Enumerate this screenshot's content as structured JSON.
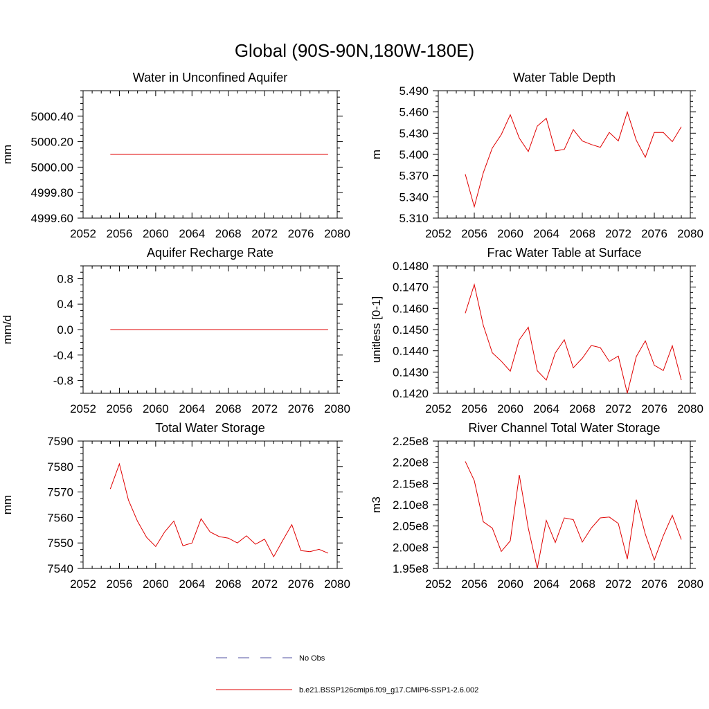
{
  "figure_title": "Global (90S-90N,180W-180E)",
  "chart_data": [
    {
      "type": "line",
      "title": "Water in Unconfined Aquifer",
      "ylabel": "mm",
      "xlim": [
        2052,
        2080
      ],
      "ylim": [
        4999.6,
        5000.6
      ],
      "x_ticks": [
        "2052",
        "2056",
        "2060",
        "2064",
        "2068",
        "2072",
        "2076",
        "2080"
      ],
      "y_ticks": [
        "4999.60",
        "4999.80",
        "5000.00",
        "5000.20",
        "5000.40"
      ],
      "y_tick_values": [
        4999.6,
        4999.8,
        5000.0,
        5000.2,
        5000.4
      ],
      "series": [
        {
          "name": "b.e21.BSSP126cmip6.f09_g17.CMIP6-SSP1-2.6.002",
          "x": [
            2055,
            2056,
            2057,
            2058,
            2059,
            2060,
            2061,
            2062,
            2063,
            2064,
            2065,
            2066,
            2067,
            2068,
            2069,
            2070,
            2071,
            2072,
            2073,
            2074,
            2075,
            2076,
            2077,
            2078,
            2079
          ],
          "y": [
            5000.1,
            5000.1,
            5000.1,
            5000.1,
            5000.1,
            5000.1,
            5000.1,
            5000.1,
            5000.1,
            5000.1,
            5000.1,
            5000.1,
            5000.1,
            5000.1,
            5000.1,
            5000.1,
            5000.1,
            5000.1,
            5000.1,
            5000.1,
            5000.1,
            5000.1,
            5000.1,
            5000.1,
            5000.1
          ]
        }
      ]
    },
    {
      "type": "line",
      "title": "Water Table Depth",
      "ylabel": "m",
      "xlim": [
        2052,
        2080
      ],
      "ylim": [
        5.31,
        5.49
      ],
      "x_ticks": [
        "2052",
        "2056",
        "2060",
        "2064",
        "2068",
        "2072",
        "2076",
        "2080"
      ],
      "y_ticks": [
        "5.310",
        "5.340",
        "5.370",
        "5.400",
        "5.430",
        "5.460",
        "5.490"
      ],
      "y_tick_values": [
        5.31,
        5.34,
        5.37,
        5.4,
        5.43,
        5.46,
        5.49
      ],
      "series": [
        {
          "name": "b.e21.BSSP126cmip6.f09_g17.CMIP6-SSP1-2.6.002",
          "x": [
            2055,
            2056,
            2057,
            2058,
            2059,
            2060,
            2061,
            2062,
            2063,
            2064,
            2065,
            2066,
            2067,
            2068,
            2069,
            2070,
            2071,
            2072,
            2073,
            2074,
            2075,
            2076,
            2077,
            2078,
            2079
          ],
          "y": [
            5.372,
            5.326,
            5.374,
            5.409,
            5.428,
            5.456,
            5.423,
            5.404,
            5.44,
            5.451,
            5.405,
            5.407,
            5.435,
            5.419,
            5.414,
            5.41,
            5.431,
            5.419,
            5.46,
            5.42,
            5.396,
            5.431,
            5.431,
            5.418,
            5.439
          ]
        }
      ]
    },
    {
      "type": "line",
      "title": "Aquifer Recharge Rate",
      "ylabel": "mm/d",
      "xlim": [
        2052,
        2080
      ],
      "ylim": [
        -1.0,
        1.0
      ],
      "x_ticks": [
        "2052",
        "2056",
        "2060",
        "2064",
        "2068",
        "2072",
        "2076",
        "2080"
      ],
      "y_ticks": [
        "-0.8",
        "-0.4",
        "0.0",
        "0.4",
        "0.8"
      ],
      "y_tick_values": [
        -0.8,
        -0.4,
        0.0,
        0.4,
        0.8
      ],
      "series": [
        {
          "name": "b.e21.BSSP126cmip6.f09_g17.CMIP6-SSP1-2.6.002",
          "x": [
            2055,
            2056,
            2057,
            2058,
            2059,
            2060,
            2061,
            2062,
            2063,
            2064,
            2065,
            2066,
            2067,
            2068,
            2069,
            2070,
            2071,
            2072,
            2073,
            2074,
            2075,
            2076,
            2077,
            2078,
            2079
          ],
          "y": [
            0,
            0,
            0,
            0,
            0,
            0,
            0,
            0,
            0,
            0,
            0,
            0,
            0,
            0,
            0,
            0,
            0,
            0,
            0,
            0,
            0,
            0,
            0,
            0,
            0
          ]
        }
      ]
    },
    {
      "type": "line",
      "title": "Frac Water Table at Surface",
      "ylabel": "unitless [0-1]",
      "xlim": [
        2052,
        2080
      ],
      "ylim": [
        0.142,
        0.148
      ],
      "x_ticks": [
        "2052",
        "2056",
        "2060",
        "2064",
        "2068",
        "2072",
        "2076",
        "2080"
      ],
      "y_ticks": [
        "0.1420",
        "0.1430",
        "0.1440",
        "0.1450",
        "0.1460",
        "0.1470",
        "0.1480"
      ],
      "y_tick_values": [
        0.142,
        0.143,
        0.144,
        0.145,
        0.146,
        0.147,
        0.148
      ],
      "series": [
        {
          "name": "b.e21.BSSP126cmip6.f09_g17.CMIP6-SSP1-2.6.002",
          "x": [
            2055,
            2056,
            2057,
            2058,
            2059,
            2060,
            2061,
            2062,
            2063,
            2064,
            2065,
            2066,
            2067,
            2068,
            2069,
            2070,
            2071,
            2072,
            2073,
            2074,
            2075,
            2076,
            2077,
            2078,
            2079
          ],
          "y": [
            0.14577,
            0.14712,
            0.1452,
            0.14391,
            0.14351,
            0.14304,
            0.14452,
            0.14511,
            0.14306,
            0.14262,
            0.1439,
            0.14452,
            0.1432,
            0.14365,
            0.14425,
            0.14415,
            0.1435,
            0.14375,
            0.142,
            0.14373,
            0.14447,
            0.14332,
            0.14307,
            0.14424,
            0.14262
          ]
        }
      ]
    },
    {
      "type": "line",
      "title": "Total Water Storage",
      "ylabel": "mm",
      "xlim": [
        2052,
        2080
      ],
      "ylim": [
        7540,
        7590
      ],
      "x_ticks": [
        "2052",
        "2056",
        "2060",
        "2064",
        "2068",
        "2072",
        "2076",
        "2080"
      ],
      "y_ticks": [
        "7540",
        "7550",
        "7560",
        "7570",
        "7580",
        "7590"
      ],
      "y_tick_values": [
        7540,
        7550,
        7560,
        7570,
        7580,
        7590
      ],
      "series": [
        {
          "name": "b.e21.BSSP126cmip6.f09_g17.CMIP6-SSP1-2.6.002",
          "x": [
            2055,
            2056,
            2057,
            2058,
            2059,
            2060,
            2061,
            2062,
            2063,
            2064,
            2065,
            2066,
            2067,
            2068,
            2069,
            2070,
            2071,
            2072,
            2073,
            2074,
            2075,
            2076,
            2077,
            2078,
            2079
          ],
          "y": [
            7571.2,
            7581.0,
            7566.8,
            7558.5,
            7552.2,
            7548.6,
            7554.4,
            7558.6,
            7548.9,
            7550.0,
            7559.5,
            7554.3,
            7552.5,
            7551.9,
            7550.0,
            7552.8,
            7549.5,
            7551.5,
            7544.6,
            7551.0,
            7557.2,
            7547.0,
            7546.6,
            7547.5,
            7546.0
          ]
        }
      ]
    },
    {
      "type": "line",
      "title": "River Channel Total Water Storage",
      "ylabel": "m3",
      "xlim": [
        2052,
        2080
      ],
      "ylim": [
        195000000.0,
        225000000.0
      ],
      "x_ticks": [
        "2052",
        "2056",
        "2060",
        "2064",
        "2068",
        "2072",
        "2076",
        "2080"
      ],
      "y_ticks": [
        "1.95e8",
        "2.00e8",
        "2.05e8",
        "2.10e8",
        "2.15e8",
        "2.20e8",
        "2.25e8"
      ],
      "y_tick_values": [
        195000000.0,
        200000000.0,
        205000000.0,
        210000000.0,
        215000000.0,
        220000000.0,
        225000000.0
      ],
      "series": [
        {
          "name": "b.e21.BSSP126cmip6.f09_g17.CMIP6-SSP1-2.6.002",
          "x": [
            2055,
            2056,
            2057,
            2058,
            2059,
            2060,
            2061,
            2062,
            2063,
            2064,
            2065,
            2066,
            2067,
            2068,
            2069,
            2070,
            2071,
            2072,
            2073,
            2074,
            2075,
            2076,
            2077,
            2078,
            2079
          ],
          "y": [
            220200000.0,
            215700000.0,
            206000000.0,
            204500000.0,
            199000000.0,
            201500000.0,
            217000000.0,
            204500000.0,
            195000000.0,
            206300000.0,
            201100000.0,
            206900000.0,
            206500000.0,
            201200000.0,
            204500000.0,
            206900000.0,
            207100000.0,
            205600000.0,
            197200000.0,
            211200000.0,
            203100000.0,
            197000000.0,
            202700000.0,
            207500000.0,
            201800000.0
          ]
        }
      ]
    }
  ],
  "legend": [
    {
      "label": "No Obs",
      "color": "#5050a0",
      "style": "dashed"
    },
    {
      "label": "b.e21.BSSP126cmip6.f09_g17.CMIP6-SSP1-2.6.002",
      "color": "#e00000",
      "style": "solid"
    }
  ],
  "colors": {
    "model_line": "#e00000",
    "obs_line": "#5050a0"
  }
}
